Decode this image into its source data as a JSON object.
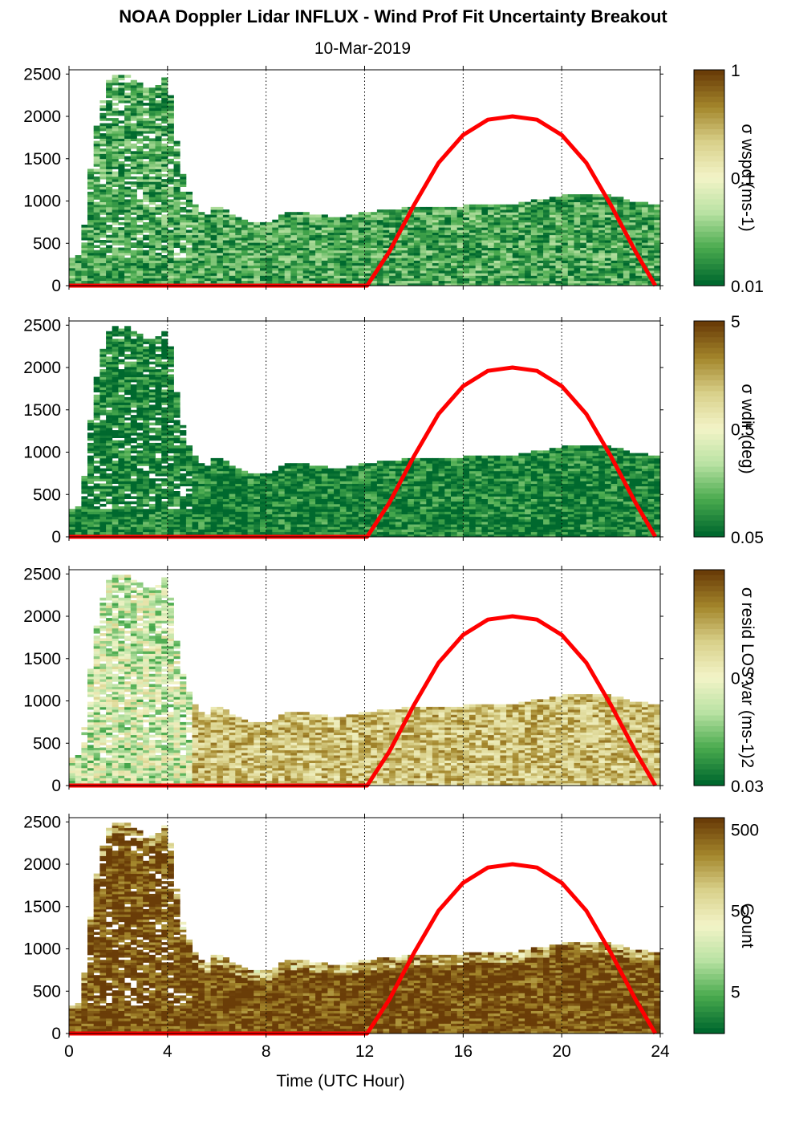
{
  "header": {
    "title": "NOAA Doppler Lidar INFLUX - Wind Prof Fit Uncertainty Breakout",
    "subtitle": "10-Mar-2019"
  },
  "chart_data": [
    {
      "type": "heatmap",
      "panel": "wspd",
      "title": "",
      "xlabel": "",
      "ylabel": "",
      "xlim": [
        0,
        24
      ],
      "ylim": [
        0,
        2550
      ],
      "x_ticks": [
        0,
        4,
        8,
        12,
        16,
        20,
        24
      ],
      "y_ticks": [
        0,
        500,
        1000,
        1500,
        2000,
        2500
      ],
      "y_tick_labels": [
        "0",
        "500",
        "1000",
        "1500",
        "2000",
        "2500"
      ],
      "grid": "dotted vertical lines at x=4,8,12,16,20,24",
      "colorbar": {
        "label": "σ wspd (ms-1)",
        "scale": "log",
        "tick_labels": [
          "1",
          "0.1",
          "0.01"
        ],
        "tick_values": [
          1,
          0.1,
          0.01
        ],
        "range": [
          0.01,
          1
        ]
      },
      "colormap": [
        "#00692e",
        "#4bab4f",
        "#b9e2a3",
        "#f3f4c8",
        "#d9d18b",
        "#a4872c",
        "#6a3d08"
      ],
      "fill_level": 0.15,
      "data_top_profile": {
        "x": [
          0,
          0.5,
          1,
          1.5,
          2,
          2.5,
          3,
          3.5,
          4,
          4.5,
          5,
          5.5,
          6,
          7,
          8,
          9,
          10,
          11,
          12,
          13,
          14,
          15,
          16,
          17,
          18,
          19,
          20,
          21,
          22,
          23,
          23.8
        ],
        "y": [
          300,
          380,
          1700,
          2400,
          2500,
          2450,
          2350,
          2300,
          2500,
          1400,
          1000,
          800,
          950,
          760,
          720,
          870,
          830,
          790,
          860,
          880,
          920,
          900,
          930,
          940,
          950,
          1000,
          1050,
          1070,
          1050,
          980,
          950
        ]
      },
      "solar_elevation_curve": {
        "color": "#ff0000",
        "x": [
          0,
          12.1,
          13,
          14,
          15,
          16,
          17,
          18,
          19,
          20,
          21,
          22,
          23,
          23.8
        ],
        "y": [
          0,
          0,
          400,
          950,
          1450,
          1780,
          1960,
          2000,
          1960,
          1780,
          1450,
          950,
          400,
          0
        ]
      }
    },
    {
      "type": "heatmap",
      "panel": "wdir",
      "title": "",
      "xlabel": "",
      "ylabel": "",
      "xlim": [
        0,
        24
      ],
      "ylim": [
        0,
        2550
      ],
      "x_ticks": [
        0,
        4,
        8,
        12,
        16,
        20,
        24
      ],
      "y_ticks": [
        0,
        500,
        1000,
        1500,
        2000,
        2500
      ],
      "y_tick_labels": [
        "0",
        "500",
        "1000",
        "1500",
        "2000",
        "2500"
      ],
      "grid": "dotted vertical lines at x=4,8,12,16,20,24",
      "colorbar": {
        "label": "σ wdir (deg)",
        "scale": "log",
        "tick_labels": [
          "5",
          "0.5",
          "0.05"
        ],
        "tick_values": [
          5,
          0.5,
          0.05
        ],
        "range": [
          0.05,
          5
        ]
      },
      "colormap": [
        "#00692e",
        "#4bab4f",
        "#b9e2a3",
        "#f3f4c8",
        "#d9d18b",
        "#a4872c",
        "#6a3d08"
      ],
      "fill_level": 0.05,
      "data_top_profile": {
        "x": [
          0,
          0.5,
          1,
          1.5,
          2,
          2.5,
          3,
          3.5,
          4,
          4.5,
          5,
          5.5,
          6,
          7,
          8,
          9,
          10,
          11,
          12,
          13,
          14,
          15,
          16,
          17,
          18,
          19,
          20,
          21,
          22,
          23,
          23.8
        ],
        "y": [
          300,
          380,
          1700,
          2400,
          2500,
          2450,
          2350,
          2300,
          2500,
          1400,
          1000,
          800,
          950,
          760,
          720,
          870,
          830,
          790,
          860,
          880,
          920,
          900,
          930,
          940,
          950,
          1000,
          1050,
          1070,
          1050,
          980,
          950
        ]
      },
      "solar_elevation_curve": {
        "color": "#ff0000",
        "x": [
          0,
          12.1,
          13,
          14,
          15,
          16,
          17,
          18,
          19,
          20,
          21,
          22,
          23,
          23.8
        ],
        "y": [
          0,
          0,
          400,
          950,
          1450,
          1780,
          1960,
          2000,
          1960,
          1780,
          1450,
          950,
          400,
          0
        ]
      }
    },
    {
      "type": "heatmap",
      "panel": "resid",
      "title": "",
      "xlabel": "",
      "ylabel": "",
      "xlim": [
        0,
        24
      ],
      "ylim": [
        0,
        2550
      ],
      "x_ticks": [
        0,
        4,
        8,
        12,
        16,
        20,
        24
      ],
      "y_ticks": [
        0,
        500,
        1000,
        1500,
        2000,
        2500
      ],
      "y_tick_labels": [
        "0",
        "500",
        "1000",
        "1500",
        "2000",
        "2500"
      ],
      "grid": "dotted vertical lines at x=4,8,12,16,20,24",
      "colorbar": {
        "label": "σ resid LOS var (ms-1)2",
        "scale": "log",
        "tick_labels": [
          "",
          "0.3",
          "0.03"
        ],
        "tick_values": [
          3,
          0.3,
          0.03
        ],
        "range": [
          0.03,
          3
        ]
      },
      "colormap": [
        "#00692e",
        "#4bab4f",
        "#b9e2a3",
        "#f3f4c8",
        "#d9d18b",
        "#a4872c",
        "#6a3d08"
      ],
      "fill_level": 0.7,
      "data_top_profile": {
        "x": [
          0,
          0.5,
          1,
          1.5,
          2,
          2.5,
          3,
          3.5,
          4,
          4.5,
          5,
          5.5,
          6,
          7,
          8,
          9,
          10,
          11,
          12,
          13,
          14,
          15,
          16,
          17,
          18,
          19,
          20,
          21,
          22,
          23,
          23.8
        ],
        "y": [
          300,
          380,
          1700,
          2400,
          2500,
          2450,
          2350,
          2300,
          2500,
          1400,
          1000,
          800,
          950,
          760,
          720,
          870,
          830,
          790,
          860,
          880,
          920,
          900,
          930,
          940,
          950,
          1000,
          1050,
          1070,
          1050,
          980,
          950
        ]
      },
      "solar_elevation_curve": {
        "color": "#ff0000",
        "x": [
          0,
          12.1,
          13,
          14,
          15,
          16,
          17,
          18,
          19,
          20,
          21,
          22,
          23,
          23.8
        ],
        "y": [
          0,
          0,
          400,
          950,
          1450,
          1780,
          1960,
          2000,
          1960,
          1780,
          1450,
          950,
          400,
          0
        ]
      }
    },
    {
      "type": "heatmap",
      "panel": "count",
      "title": "",
      "xlabel": "Time (UTC Hour)",
      "ylabel": "",
      "xlim": [
        0,
        24
      ],
      "ylim": [
        0,
        2550
      ],
      "x_ticks": [
        0,
        4,
        8,
        12,
        16,
        20,
        24
      ],
      "x_tick_labels": [
        "0",
        "4",
        "8",
        "12",
        "16",
        "20",
        "24"
      ],
      "y_ticks": [
        0,
        500,
        1000,
        1500,
        2000,
        2500
      ],
      "y_tick_labels": [
        "0",
        "500",
        "1000",
        "1500",
        "2000",
        "2500"
      ],
      "grid": "dotted vertical lines at x=4,8,12,16,20,24",
      "colorbar": {
        "label": "Count",
        "scale": "log",
        "tick_labels": [
          "500",
          "50",
          "5"
        ],
        "tick_values": [
          500,
          50,
          5
        ],
        "range": [
          1.5,
          700
        ]
      },
      "colormap": [
        "#00692e",
        "#4bab4f",
        "#b9e2a3",
        "#f3f4c8",
        "#d9d18b",
        "#a4872c",
        "#6a3d08"
      ],
      "fill_level": 0.97,
      "data_top_profile": {
        "x": [
          0,
          0.5,
          1,
          1.5,
          2,
          2.5,
          3,
          3.5,
          4,
          4.5,
          5,
          5.5,
          6,
          7,
          8,
          9,
          10,
          11,
          12,
          13,
          14,
          15,
          16,
          17,
          18,
          19,
          20,
          21,
          22,
          23,
          23.8
        ],
        "y": [
          300,
          380,
          1700,
          2400,
          2500,
          2450,
          2350,
          2300,
          2500,
          1400,
          1000,
          800,
          950,
          760,
          720,
          870,
          830,
          790,
          860,
          880,
          920,
          900,
          930,
          940,
          950,
          1000,
          1050,
          1070,
          1050,
          980,
          950
        ]
      },
      "solar_elevation_curve": {
        "color": "#ff0000",
        "x": [
          0,
          12.1,
          13,
          14,
          15,
          16,
          17,
          18,
          19,
          20,
          21,
          22,
          23,
          23.8
        ],
        "y": [
          0,
          0,
          400,
          950,
          1450,
          1780,
          1960,
          2000,
          1960,
          1780,
          1450,
          950,
          400,
          0
        ]
      }
    }
  ]
}
